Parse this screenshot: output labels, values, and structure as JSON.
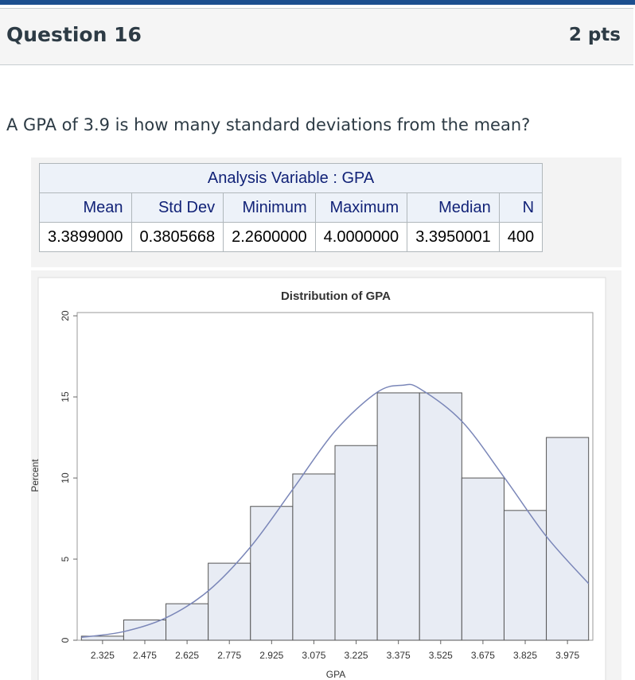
{
  "header": {
    "title": "Question 16",
    "points": "2 pts"
  },
  "question": "A GPA of 3.9 is how many standard deviations from the mean?",
  "table": {
    "title": "Analysis Variable : GPA",
    "columns": [
      "Mean",
      "Std Dev",
      "Minimum",
      "Maximum",
      "Median",
      "N"
    ],
    "rows": [
      [
        "3.3899000",
        "0.3805668",
        "2.2600000",
        "4.0000000",
        "3.3950001",
        "400"
      ]
    ]
  },
  "chart_data": {
    "type": "histogram",
    "title": "Distribution of GPA",
    "x_label": "GPA",
    "y_label": "Percent",
    "bins": [
      2.25,
      2.4,
      2.55,
      2.7,
      2.85,
      3.0,
      3.15,
      3.3,
      3.45,
      3.6,
      3.75,
      3.9,
      4.05
    ],
    "values": [
      0.25,
      1.25,
      2.25,
      4.75,
      8.25,
      10.25,
      12,
      15.25,
      15.25,
      10,
      8,
      12.5
    ],
    "color": "#e8ecf4",
    "edge_color": "#555555",
    "curve": {
      "x": [
        2.25,
        2.4,
        2.55,
        2.7,
        2.85,
        3.0,
        3.15,
        3.3,
        3.39,
        3.45,
        3.6,
        3.75,
        3.9,
        4.05
      ],
      "values": [
        0.18,
        0.53,
        1.38,
        3.04,
        5.75,
        9.3,
        12.89,
        15.29,
        15.72,
        15.52,
        13.5,
        10.05,
        6.4,
        3.49
      ],
      "color": "#7a86b8"
    },
    "xlim": [
      2.235,
      4.065
    ],
    "ylim": [
      0,
      20.2
    ],
    "xticks": [
      2.325,
      2.475,
      2.625,
      2.775,
      2.925,
      3.075,
      3.225,
      3.375,
      3.525,
      3.675,
      3.825,
      3.975
    ],
    "yticks": [
      0,
      5,
      10,
      15,
      20
    ]
  }
}
